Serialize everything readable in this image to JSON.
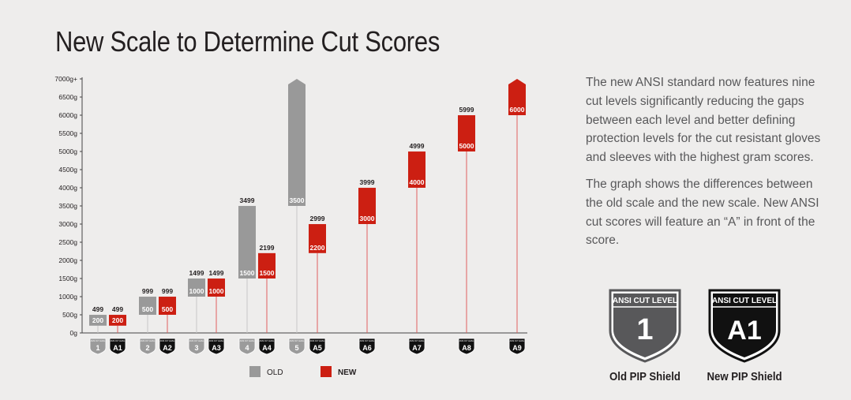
{
  "title": "New Scale to Determine Cut Scores",
  "description": [
    "The new ANSI standard now features nine cut levels significantly reducing the gaps between each level and better defining protection levels for the cut resistant gloves and sleeves with the highest gram scores.",
    "The graph shows the differences between the old scale and the new scale. New ANSI cut scores will feature an “A” in front of the score."
  ],
  "colors": {
    "old": "#999999",
    "new": "#cc1f12",
    "line_new": "#e06060",
    "line_old": "#c8c8c8",
    "shield_old": "#58585a",
    "shield_new": "#111111"
  },
  "legend": {
    "old_label": "OLD",
    "new_label": "NEW"
  },
  "shields": {
    "old": {
      "header": "ANSI CUT LEVEL",
      "level": "1",
      "caption": "Old PIP Shield"
    },
    "new": {
      "header": "ANSI CUT LEVEL",
      "level": "A1",
      "caption": "New PIP Shield"
    }
  },
  "chart_data": {
    "type": "bar",
    "title": "New Scale to Determine Cut Scores",
    "y_ticks": [
      "0g",
      "500g",
      "1000g",
      "1500g",
      "2000g",
      "2500g",
      "3000g",
      "3500g",
      "4000g",
      "4500g",
      "5000g",
      "5500g",
      "6000g",
      "6500g",
      "7000g+"
    ],
    "ylim": [
      0,
      7000
    ],
    "series": [
      {
        "name": "OLD",
        "levels": [
          "1",
          "2",
          "3",
          "4",
          "5"
        ],
        "low": [
          200,
          500,
          1000,
          1500,
          3500
        ],
        "high": [
          499,
          999,
          1499,
          3499,
          7000
        ],
        "low_labels": [
          "200",
          "500",
          "1000",
          "1500",
          "3500"
        ],
        "high_labels": [
          "499",
          "999",
          "1499",
          "3499",
          ""
        ]
      },
      {
        "name": "NEW",
        "levels": [
          "A1",
          "A2",
          "A3",
          "A4",
          "A5",
          "A6",
          "A7",
          "A8",
          "A9"
        ],
        "low": [
          200,
          500,
          1000,
          1500,
          2200,
          3000,
          4000,
          5000,
          6000
        ],
        "high": [
          499,
          999,
          1499,
          2199,
          2999,
          3999,
          4999,
          5999,
          7000
        ],
        "low_labels": [
          "200",
          "500",
          "1000",
          "1500",
          "2200",
          "3000",
          "4000",
          "5000",
          "6000"
        ],
        "high_labels": [
          "499",
          "999",
          "1499",
          "2199",
          "2999",
          "3999",
          "4999",
          "5999",
          ""
        ]
      }
    ],
    "badge_header": "ANSI CUT LEVEL",
    "legend_position": "bottom"
  }
}
